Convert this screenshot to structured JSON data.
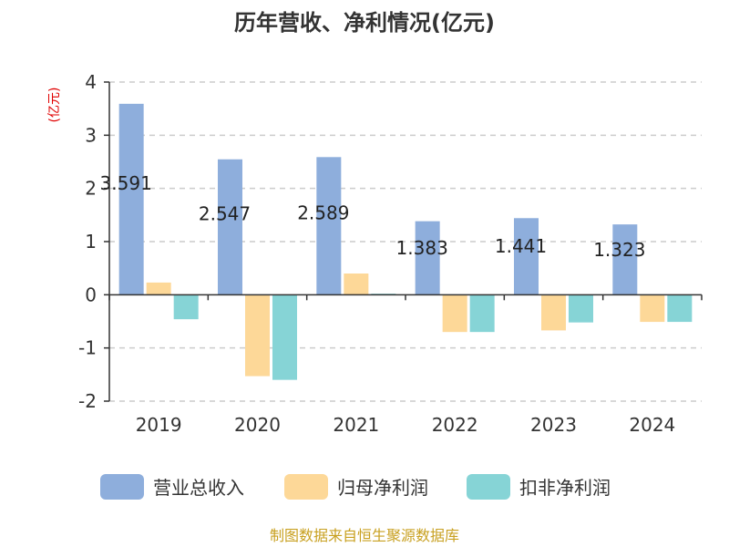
{
  "chart_data": {
    "type": "bar",
    "title": "历年营收、净利情况(亿元)",
    "unit_label": "(亿元)",
    "categories": [
      "2019",
      "2020",
      "2021",
      "2022",
      "2023",
      "2024"
    ],
    "series": [
      {
        "name": "营业总收入",
        "color": "#8eaedc",
        "values": [
          3.591,
          2.547,
          2.589,
          1.383,
          1.441,
          1.323
        ],
        "data_labels": [
          "3.591",
          "2.547",
          "2.589",
          "1.383",
          "1.441",
          "1.323"
        ]
      },
      {
        "name": "归母净利润",
        "color": "#fdd898",
        "values": [
          0.23,
          -1.53,
          0.4,
          -0.7,
          -0.67,
          -0.51
        ]
      },
      {
        "name": "扣非净利润",
        "color": "#86d4d6",
        "values": [
          -0.46,
          -1.6,
          0.02,
          -0.7,
          -0.52,
          -0.51
        ]
      }
    ],
    "ylim": [
      -2,
      4
    ],
    "yticks": [
      "4",
      "3",
      "2",
      "1",
      "0",
      "-1",
      "-2"
    ],
    "grid": true,
    "legend_position": "bottom"
  },
  "footer": {
    "source": "制图数据来自恒生聚源数据库"
  }
}
